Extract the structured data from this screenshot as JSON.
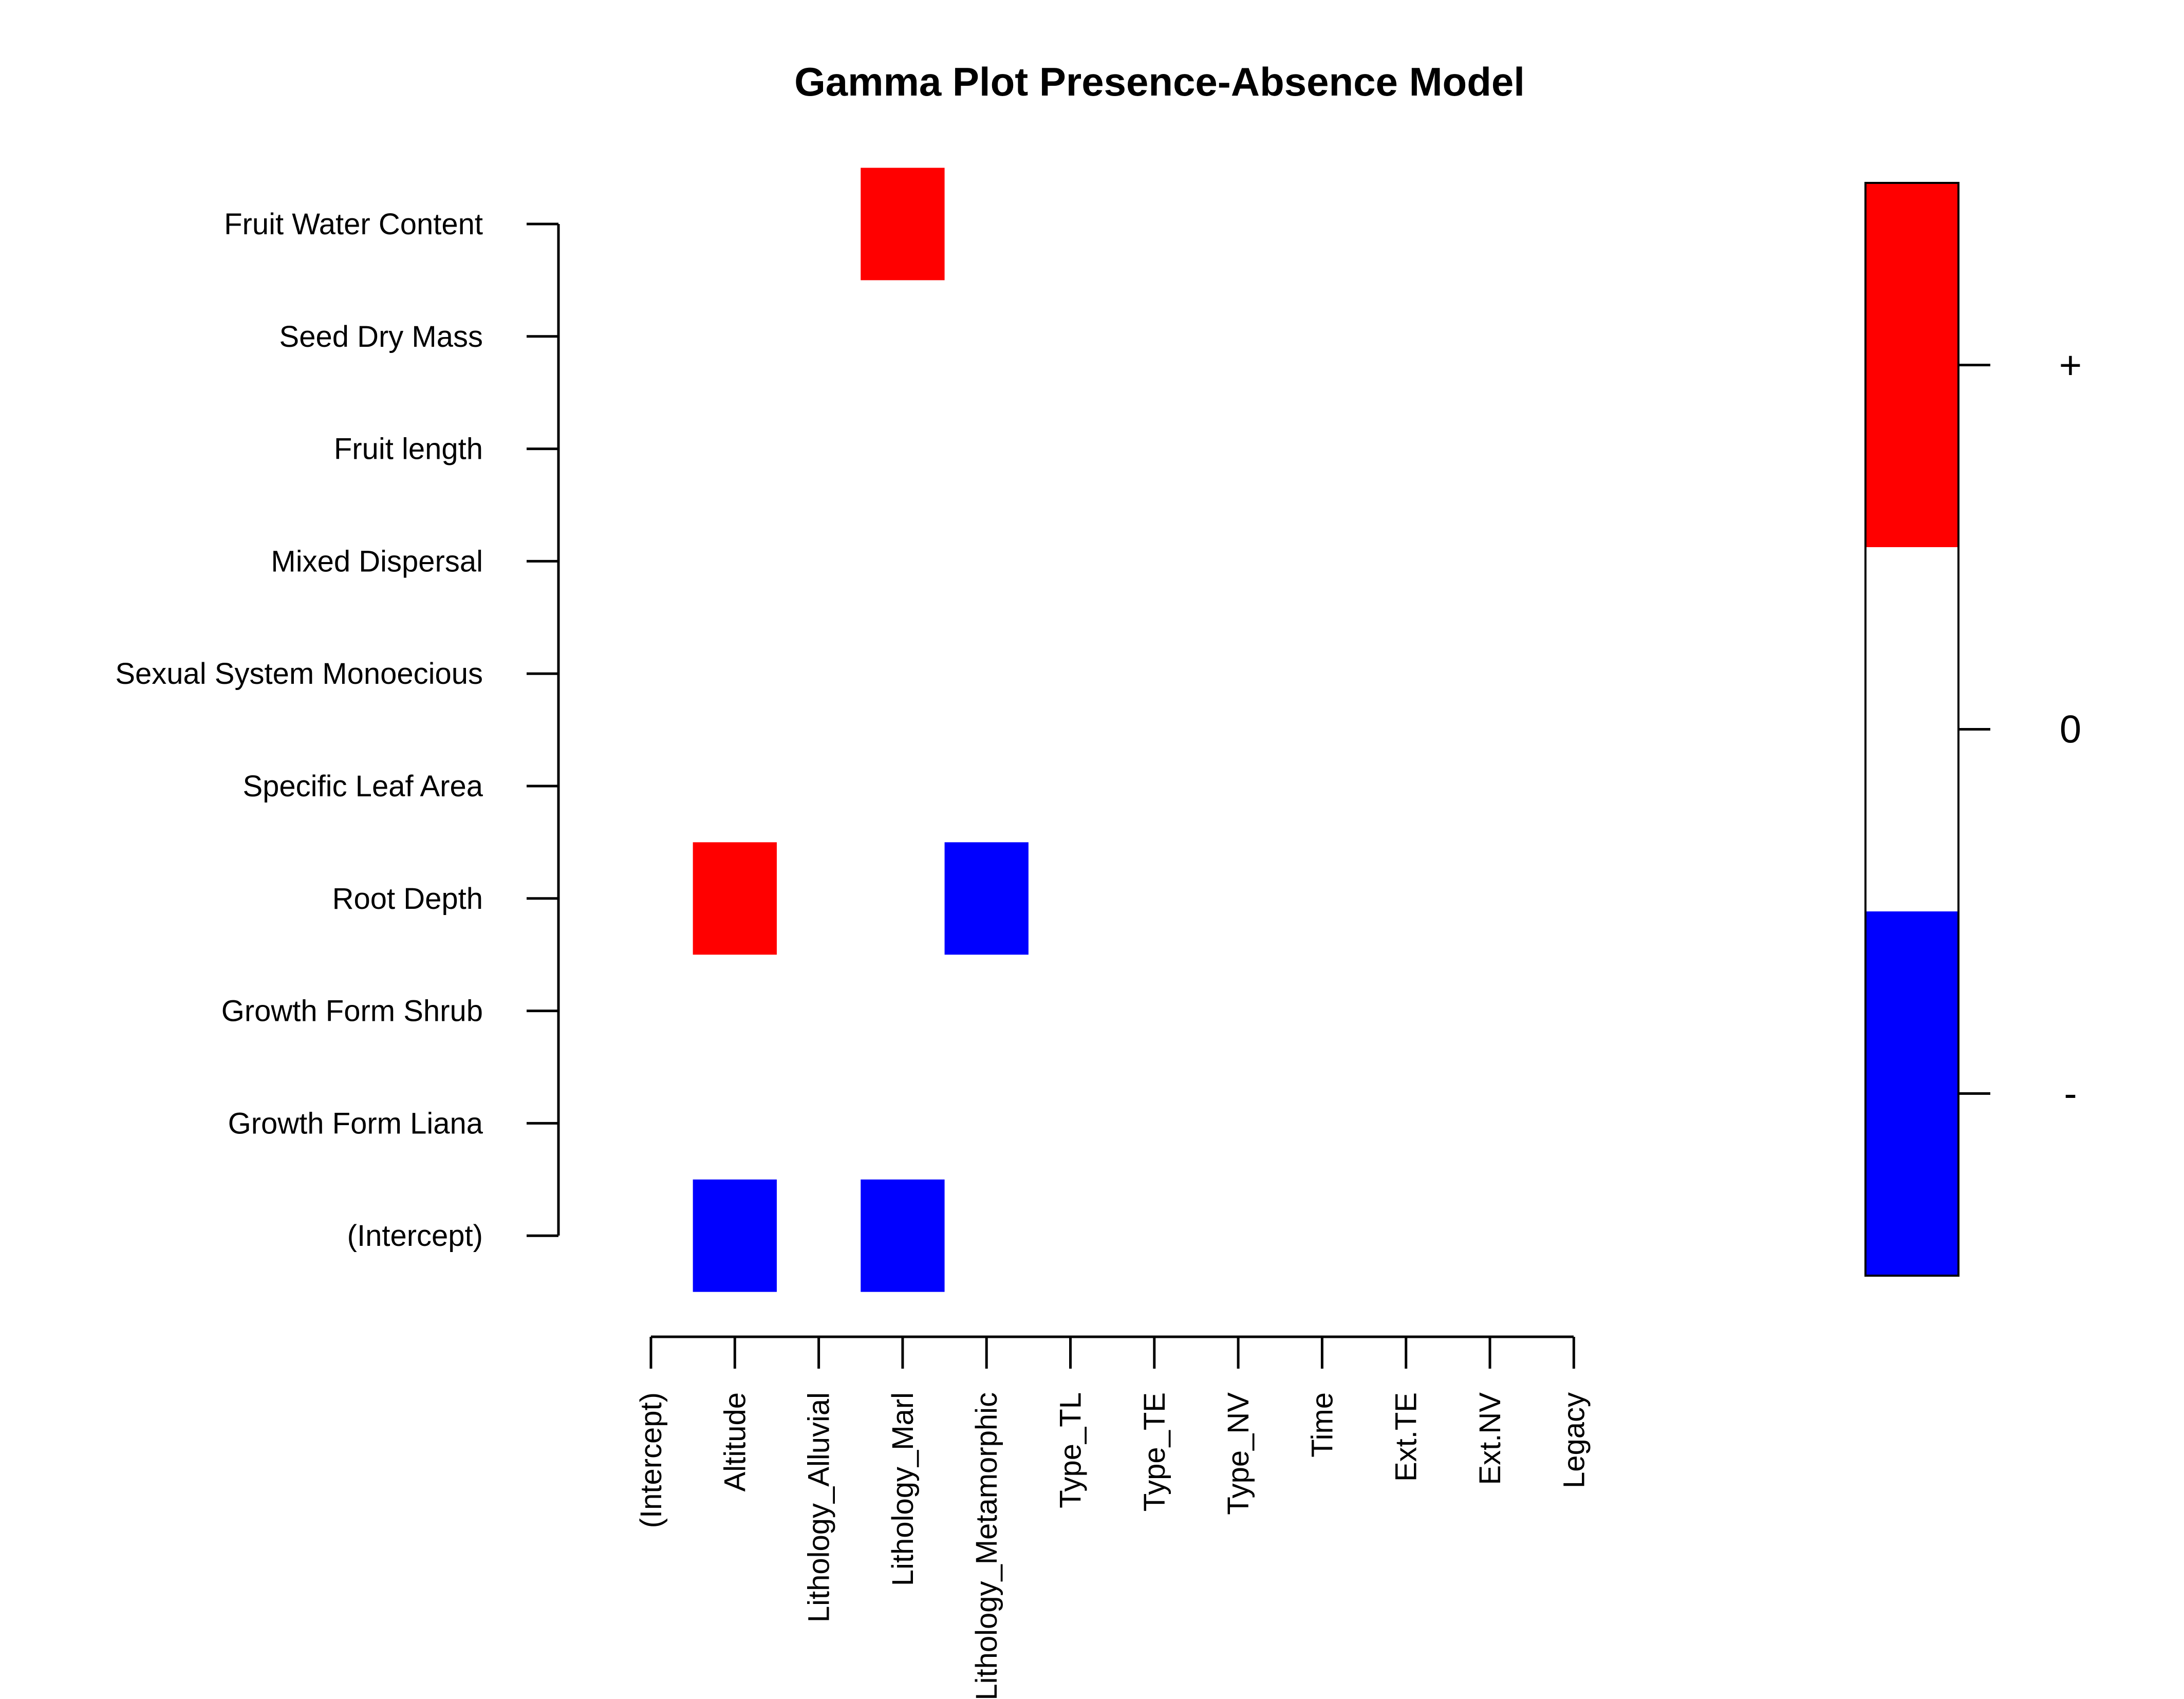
{
  "chart_data": {
    "type": "heatmap",
    "title": "Gamma Plot Presence-Absence Model",
    "rows": [
      "Fruit Water Content",
      "Seed Dry Mass",
      "Fruit length",
      "Mixed Dispersal",
      "Sexual System Monoecious",
      "Specific Leaf Area",
      "Root Depth",
      "Growth Form Shrub",
      "Growth Form Liana",
      "(Intercept)"
    ],
    "columns": [
      "(Intercept)",
      "Altitude",
      "Lithology_Alluvial",
      "Lithology_Marl",
      "Lithology_Metamorphic",
      "Type_TL",
      "Type_TE",
      "Type_NV",
      "Time",
      "Ext.TE",
      "Ext.NV",
      "Legacy"
    ],
    "values": [
      [
        0,
        0,
        0,
        1,
        0,
        0,
        0,
        0,
        0,
        0,
        0,
        0
      ],
      [
        0,
        0,
        0,
        0,
        0,
        0,
        0,
        0,
        0,
        0,
        0,
        0
      ],
      [
        0,
        0,
        0,
        0,
        0,
        0,
        0,
        0,
        0,
        0,
        0,
        0
      ],
      [
        0,
        0,
        0,
        0,
        0,
        0,
        0,
        0,
        0,
        0,
        0,
        0
      ],
      [
        0,
        0,
        0,
        0,
        0,
        0,
        0,
        0,
        0,
        0,
        0,
        0
      ],
      [
        0,
        0,
        0,
        0,
        0,
        0,
        0,
        0,
        0,
        0,
        0,
        0
      ],
      [
        0,
        1,
        0,
        0,
        -1,
        0,
        0,
        0,
        0,
        0,
        0,
        0
      ],
      [
        0,
        0,
        0,
        0,
        0,
        0,
        0,
        0,
        0,
        0,
        0,
        0
      ],
      [
        0,
        0,
        0,
        0,
        0,
        0,
        0,
        0,
        0,
        0,
        0,
        0
      ],
      [
        0,
        -1,
        0,
        -1,
        0,
        0,
        0,
        0,
        0,
        0,
        0,
        0
      ]
    ],
    "legend": {
      "position": "right",
      "levels": [
        {
          "label": "+",
          "value": 1,
          "color": "#ff0000"
        },
        {
          "label": "0",
          "value": 0,
          "color": "#ffffff"
        },
        {
          "label": "-",
          "value": -1,
          "color": "#0000ff"
        }
      ]
    },
    "grid": false
  }
}
